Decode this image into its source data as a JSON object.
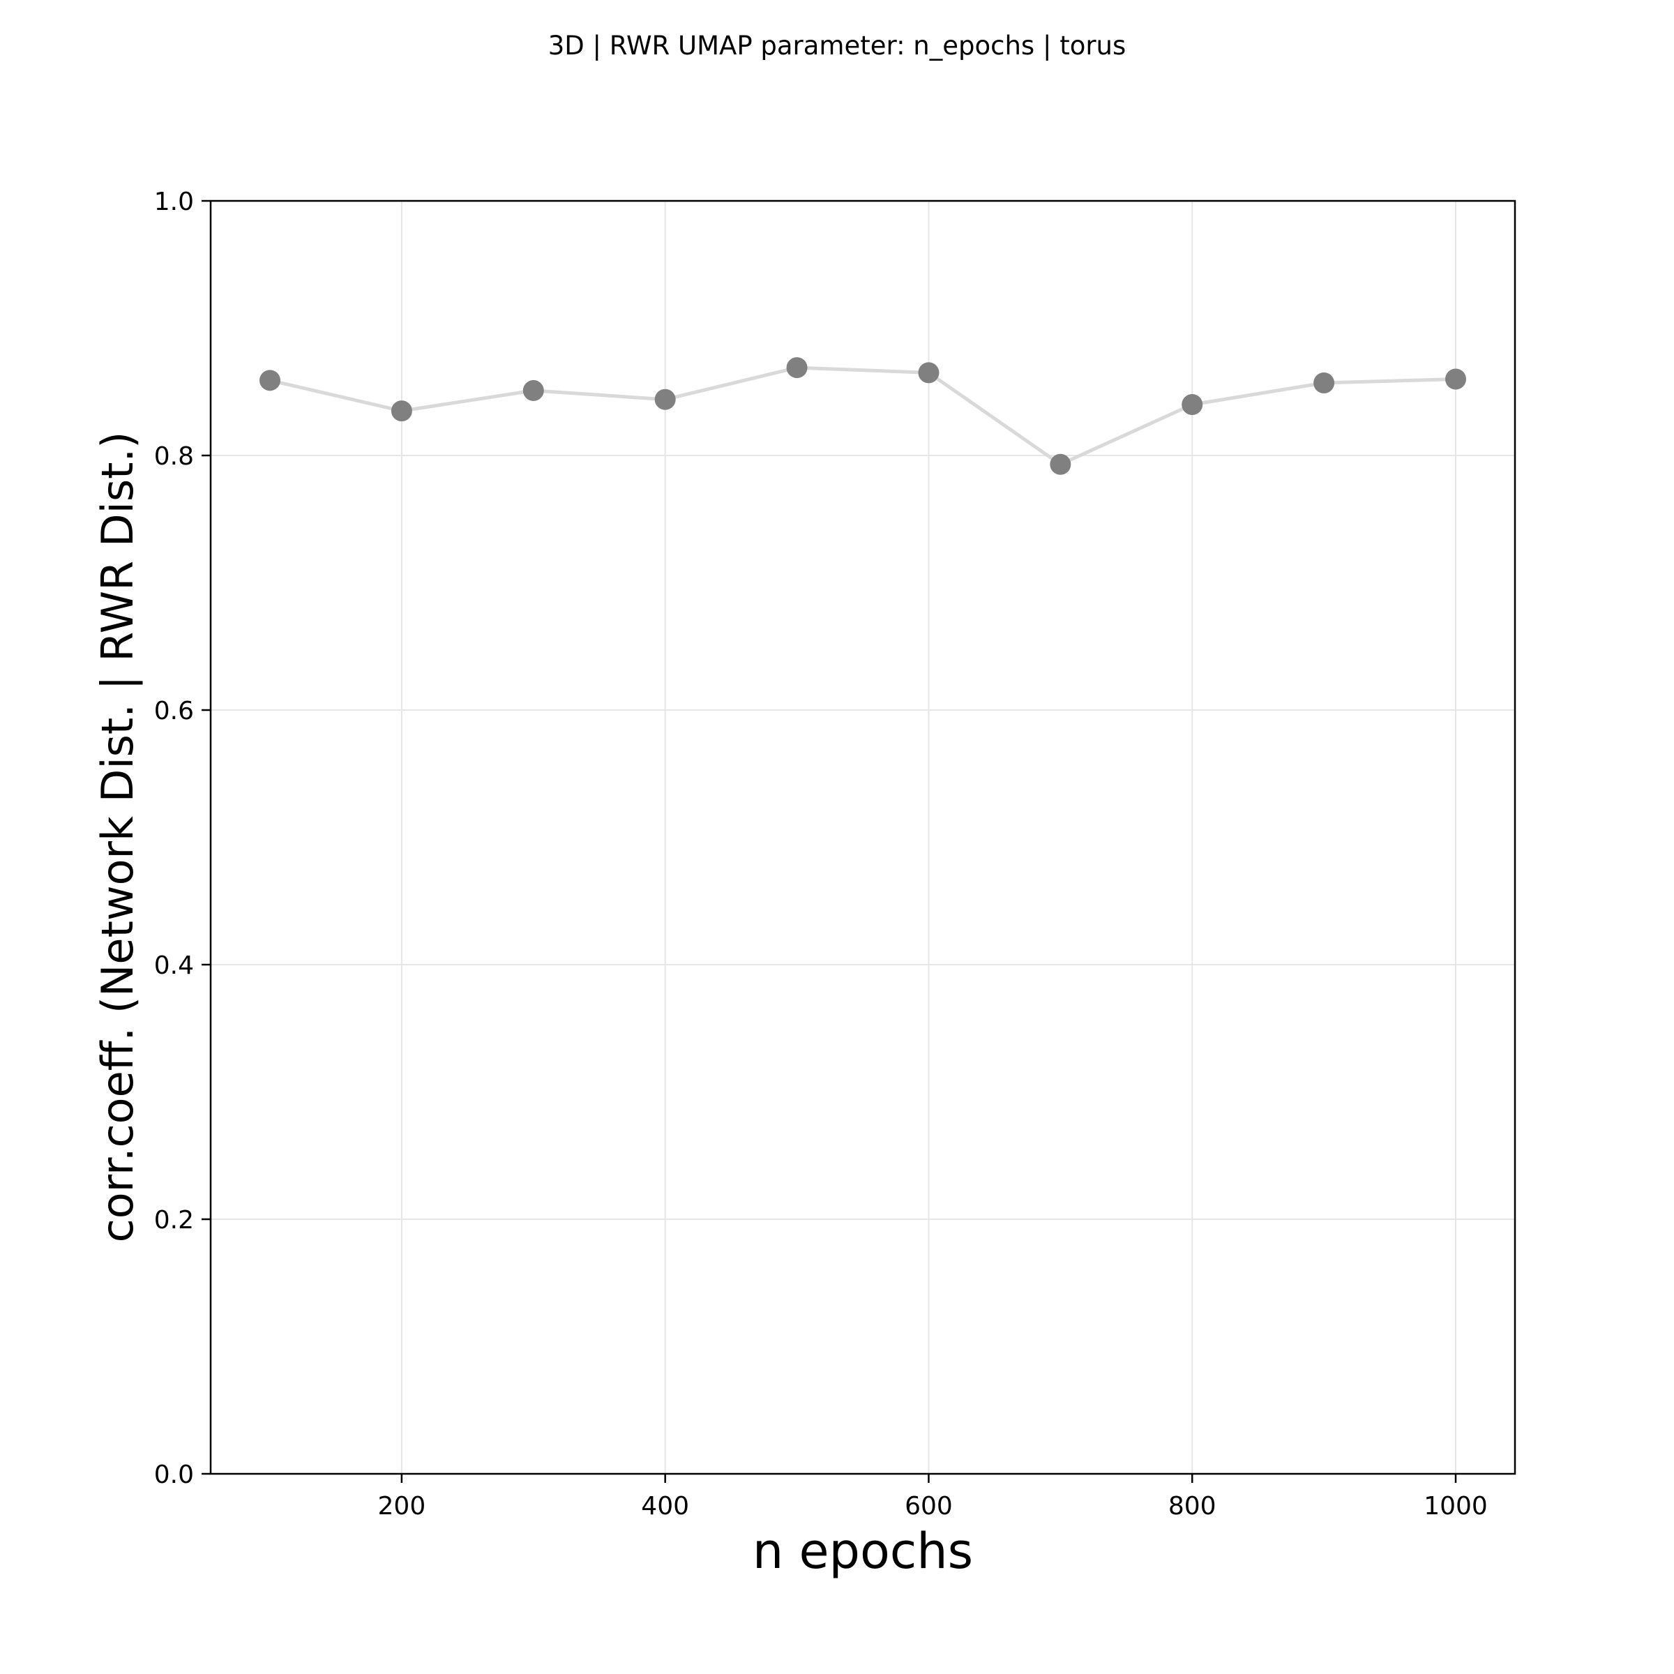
{
  "chart_data": {
    "type": "line",
    "title": "3D | RWR UMAP parameter: n_epochs | torus",
    "xlabel": "n epochs",
    "ylabel": "corr.coeff. (Network Dist. | RWR Dist.)",
    "x": [
      100,
      200,
      300,
      400,
      500,
      600,
      700,
      800,
      900,
      1000
    ],
    "series": [
      {
        "values": [
          0.859,
          0.835,
          0.851,
          0.844,
          0.869,
          0.865,
          0.793,
          0.84,
          0.857,
          0.86
        ]
      }
    ],
    "xlim": [
      55,
      1045
    ],
    "ylim": [
      0.0,
      1.0
    ],
    "xticks": [
      200,
      400,
      600,
      800,
      1000
    ],
    "yticks": [
      0.0,
      0.2,
      0.4,
      0.6,
      0.8,
      1.0
    ],
    "xtick_labels": [
      "200",
      "400",
      "600",
      "800",
      "1000"
    ],
    "ytick_labels": [
      "0.0",
      "0.2",
      "0.4",
      "0.6",
      "0.8",
      "1.0"
    ],
    "grid": true,
    "line_color": "#d9d9d9",
    "marker_color": "#808080",
    "grid_color": "#e6e6e6"
  }
}
